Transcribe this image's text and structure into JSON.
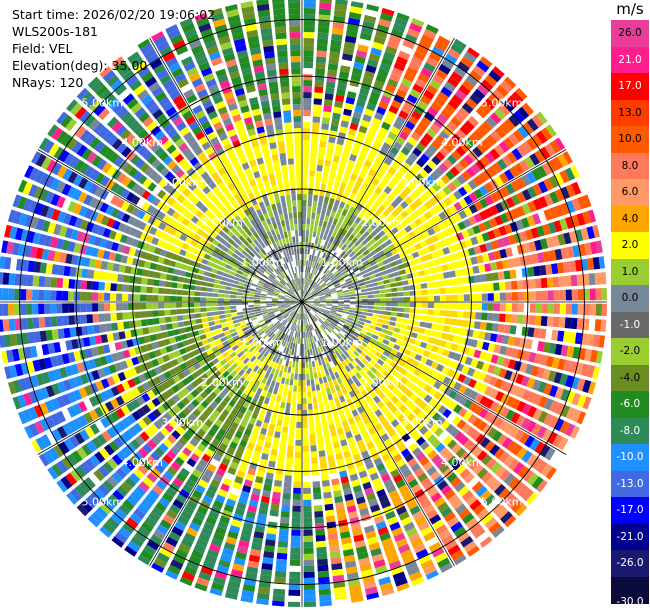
{
  "info": {
    "start_time": "Start time: 2026/02/20 19:06:02",
    "instrument": "WLS200s-181",
    "field": "Field: VEL",
    "elevation": "Elevation(deg): 35.00",
    "nrays": "NRays: 120"
  },
  "chart_data": {
    "type": "heatmap",
    "subtype": "polar-ppi",
    "title": "",
    "field": "VEL",
    "units": "m/s",
    "n_rays": 120,
    "elevation_deg": 35.0,
    "range_max_km": 5.4,
    "range_ring_labels": [
      "1.00km",
      "2.00km",
      "3.00km",
      "4.00km",
      "5.00km"
    ],
    "colorbar": {
      "ticks": [
        "26.0",
        "21.0",
        "17.0",
        "13.0",
        "10.0",
        "8.0",
        "6.0",
        "4.0",
        "2.0",
        "1.0",
        "0.0",
        "-1.0",
        "-2.0",
        "-4.0",
        "-6.0",
        "-8.0",
        "-10.0",
        "-13.0",
        "-17.0",
        "-21.0",
        "-26.0",
        "-30.0"
      ],
      "colors": [
        "#e83e9a",
        "#ff1e8c",
        "#ff0000",
        "#ff3c00",
        "#ff5a00",
        "#ff7a5a",
        "#ff9966",
        "#ffa500",
        "#ffff00",
        "#9acd32",
        "#778899",
        "#696969",
        "#9acd32",
        "#6b8e23",
        "#228b22",
        "#2e8b57",
        "#1e90ff",
        "#4169e1",
        "#0000ff",
        "#00008b",
        "#191970",
        "#0b0b3b"
      ]
    }
  }
}
